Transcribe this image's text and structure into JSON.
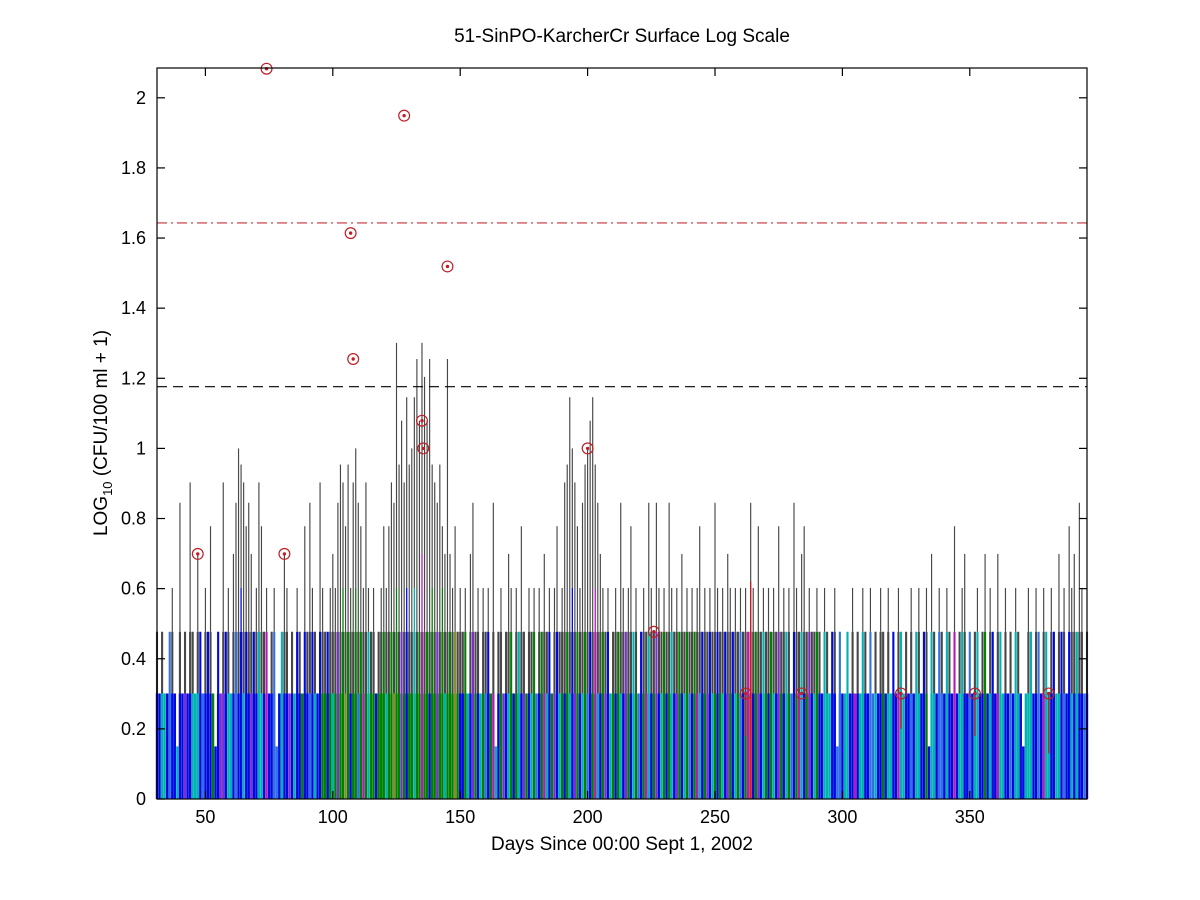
{
  "chart_data": {
    "type": "stem",
    "title": "51-SinPO-KarcherCr Surface Log Scale",
    "xlabel": "Days Since 00:00 Sept 1, 2002",
    "ylabel_pre": "LOG",
    "ylabel_sub": "10",
    "ylabel_post": " (CFU/100 ml + 1)",
    "xlim": [
      31,
      396
    ],
    "ylim": [
      0,
      2.085
    ],
    "xticks": [
      50,
      100,
      150,
      200,
      250,
      300,
      350
    ],
    "xtick_labels": [
      "50",
      "100",
      "150",
      "200",
      "250",
      "300",
      "350"
    ],
    "yticks": [
      0,
      0.2,
      0.4,
      0.6,
      0.8,
      1.0,
      1.2,
      1.4,
      1.6,
      1.8,
      2.0
    ],
    "ytick_labels": [
      "0",
      "0.2",
      "0.4",
      "0.6",
      "0.8",
      "1",
      "1.2",
      "1.4",
      "1.6",
      "1.8",
      "2"
    ],
    "grid": false,
    "legend": "none",
    "reference_lines": [
      {
        "name": "single-sample-criterion",
        "value": 1.643,
        "color": "#c03038",
        "style": "dashdot"
      },
      {
        "name": "geometric-mean-criterion",
        "value": 1.176,
        "color": "#000000",
        "style": "dash"
      }
    ],
    "markers": {
      "shape": "circle-with-dot",
      "color": "#c01e24",
      "points": [
        [
          74,
          2.083
        ],
        [
          128,
          1.949
        ],
        [
          107,
          1.614
        ],
        [
          145,
          1.519
        ],
        [
          108,
          1.255
        ],
        [
          135,
          1.079
        ],
        [
          135.5,
          1.0
        ],
        [
          200,
          1.0
        ],
        [
          47,
          0.699
        ],
        [
          81,
          0.699
        ],
        [
          226,
          0.477
        ],
        [
          262,
          0.301
        ],
        [
          284,
          0.301
        ],
        [
          323,
          0.301
        ],
        [
          352,
          0.301
        ],
        [
          381,
          0.301
        ]
      ]
    },
    "red_stems": [
      {
        "day": 264,
        "from": 0.301,
        "to": 0.62
      },
      {
        "day": 262,
        "from": 0.18,
        "to": 0.301
      },
      {
        "day": 323,
        "from": 0.2,
        "to": 0.301
      },
      {
        "day": 352,
        "from": 0.18,
        "to": 0.301
      },
      {
        "day": 381,
        "from": 0.13,
        "to": 0.301
      }
    ],
    "stem_gray": "#474747",
    "palette": [
      "#0008e0",
      "#2f6fe8",
      "#00b2b2",
      "#007f00",
      "#7a30d0",
      "#b818b8",
      "#8a8a30",
      "#5868a8",
      "#cc2222"
    ],
    "levels": [
      0,
      0.15,
      0.301,
      0.477,
      0.602,
      0.699,
      0.778,
      0.845,
      0.903,
      0.954,
      1.0,
      1.041,
      1.079,
      1.146,
      1.204,
      1.255,
      1.301
    ],
    "ext_levels": [
      0.301,
      0.477,
      0.602,
      0.699
    ],
    "day_start": 31,
    "h": [
      3,
      2,
      3,
      2,
      2,
      3,
      4,
      2,
      1,
      7,
      2,
      3,
      2,
      8,
      3,
      2,
      5,
      3,
      2,
      4,
      3,
      6,
      2,
      1,
      3,
      2,
      8,
      3,
      4,
      2,
      5,
      7,
      10,
      9,
      8,
      6,
      7,
      5,
      3,
      4,
      8,
      6,
      3,
      4,
      2,
      3,
      4,
      1,
      2,
      3,
      5,
      4,
      2,
      3,
      2,
      4,
      3,
      2,
      6,
      3,
      7,
      4,
      3,
      2,
      8,
      4,
      3,
      3,
      4,
      5,
      4,
      7,
      9,
      8,
      6,
      9,
      4,
      8,
      10,
      7,
      6,
      4,
      8,
      4,
      3,
      4,
      2,
      3,
      4,
      6,
      4,
      6,
      8,
      7,
      16,
      9,
      12,
      8,
      13,
      9,
      10,
      13,
      15,
      12,
      16,
      14,
      12,
      15,
      9,
      8,
      7,
      9,
      6,
      5,
      15,
      5,
      4,
      6,
      3,
      4,
      3,
      4,
      2,
      5,
      7,
      3,
      4,
      2,
      4,
      3,
      4,
      2,
      7,
      1,
      3,
      4,
      2,
      3,
      5,
      4,
      2,
      4,
      3,
      6,
      3,
      2,
      4,
      3,
      4,
      2,
      4,
      3,
      5,
      3,
      4,
      2,
      4,
      6,
      3,
      4,
      8,
      9,
      13,
      10,
      8,
      6,
      4,
      7,
      9,
      10,
      12,
      13,
      9,
      7,
      5,
      4,
      3,
      4,
      2,
      3,
      4,
      3,
      7,
      4,
      3,
      4,
      6,
      3,
      4,
      2,
      3,
      4,
      3,
      7,
      4,
      3,
      7,
      4,
      3,
      4,
      3,
      7,
      4,
      3,
      4,
      3,
      5,
      3,
      4,
      3,
      4,
      3,
      4,
      6,
      3,
      4,
      3,
      4,
      3,
      7,
      4,
      3,
      4,
      3,
      5,
      4,
      3,
      4,
      3,
      4,
      3,
      4,
      3,
      7,
      4,
      3,
      6,
      3,
      4,
      3,
      4,
      3,
      4,
      3,
      6,
      3,
      4,
      3,
      4,
      2,
      7,
      4,
      3,
      5,
      6,
      3,
      4,
      3,
      3,
      4,
      3,
      2,
      4,
      3,
      2,
      3,
      4,
      1,
      3,
      2,
      2,
      3,
      2,
      4,
      2,
      3,
      2,
      4,
      3,
      2,
      4,
      2,
      3,
      2,
      4,
      3,
      2,
      4,
      2,
      3,
      2,
      4,
      3,
      2,
      3,
      2,
      4,
      2,
      3,
      4,
      2,
      3,
      4,
      1,
      5,
      3,
      2,
      4,
      3,
      2,
      4,
      3,
      2,
      6,
      2,
      3,
      4,
      5,
      2,
      3,
      2,
      3,
      4,
      2,
      3,
      5,
      2,
      4,
      3,
      2,
      5,
      3,
      2,
      4,
      2,
      3,
      2,
      4,
      3,
      2,
      1,
      2,
      4,
      3,
      2,
      4,
      3,
      2,
      4,
      3,
      2,
      4,
      3,
      2,
      5,
      3,
      4,
      2,
      6,
      4,
      5,
      3,
      7,
      4,
      2,
      3
    ],
    "c": [
      0,
      0,
      2,
      2,
      0,
      1,
      0,
      0,
      2,
      0,
      0,
      4,
      0,
      0,
      2,
      2,
      2,
      0,
      1,
      0,
      0,
      0,
      3,
      0,
      0,
      4,
      4,
      0,
      2,
      2,
      0,
      1,
      0,
      0,
      2,
      0,
      0,
      4,
      0,
      0,
      2,
      2,
      0,
      5,
      0,
      0,
      1,
      1,
      0,
      2,
      0,
      0,
      4,
      0,
      2,
      0,
      0,
      3,
      0,
      0,
      1,
      0,
      2,
      0,
      0,
      3,
      3,
      0,
      3,
      2,
      3,
      4,
      3,
      3,
      6,
      3,
      0,
      3,
      3,
      1,
      3,
      5,
      3,
      2,
      3,
      3,
      0,
      3,
      3,
      3,
      2,
      3,
      3,
      6,
      3,
      3,
      4,
      3,
      0,
      3,
      3,
      2,
      3,
      3,
      5,
      3,
      3,
      0,
      3,
      3,
      4,
      3,
      3,
      2,
      3,
      3,
      3,
      6,
      3,
      0,
      0,
      3,
      2,
      0,
      4,
      3,
      0,
      2,
      3,
      1,
      0,
      3,
      5,
      2,
      0,
      3,
      4,
      0,
      2,
      3,
      0,
      3,
      2,
      0,
      4,
      3,
      0,
      2,
      3,
      1,
      0,
      3,
      5,
      2,
      0,
      3,
      4,
      0,
      2,
      3,
      0,
      3,
      2,
      0,
      4,
      3,
      0,
      2,
      3,
      1,
      0,
      3,
      5,
      2,
      0,
      3,
      4,
      0,
      2,
      3,
      0,
      3,
      2,
      0,
      4,
      3,
      0,
      2,
      3,
      1,
      0,
      3,
      5,
      2,
      0,
      3,
      4,
      0,
      2,
      3,
      0,
      3,
      2,
      0,
      4,
      3,
      0,
      2,
      3,
      1,
      0,
      3,
      5,
      2,
      0,
      3,
      4,
      0,
      2,
      3,
      0,
      3,
      2,
      0,
      4,
      3,
      0,
      2,
      3,
      1,
      0,
      3,
      5,
      8,
      0,
      3,
      4,
      0,
      2,
      3,
      0,
      3,
      2,
      0,
      4,
      3,
      0,
      2,
      3,
      1,
      0,
      3,
      5,
      2,
      0,
      3,
      4,
      0,
      2,
      3,
      0,
      0,
      2,
      2,
      2,
      0,
      0,
      1,
      1,
      0,
      2,
      2,
      0,
      0,
      5,
      0,
      2,
      2,
      0,
      0,
      1,
      1,
      2,
      0,
      0,
      3,
      0,
      2,
      2,
      0,
      0,
      5,
      2,
      2,
      0,
      0,
      1,
      0,
      2,
      2,
      0,
      0,
      3,
      0,
      2,
      2,
      0,
      1,
      1,
      0,
      2,
      0,
      0,
      5,
      0,
      2,
      2,
      0,
      0,
      1,
      0,
      2,
      2,
      0,
      0,
      3,
      0,
      2,
      0,
      0,
      5,
      2,
      2,
      0,
      0,
      1,
      0,
      2,
      2,
      0,
      0,
      2,
      2,
      2,
      0,
      0,
      1,
      0,
      5,
      2,
      2,
      0,
      0,
      2,
      2,
      0,
      1,
      0,
      0,
      2,
      0,
      2,
      0,
      0,
      1,
      0
    ],
    "e": [
      0,
      1,
      0,
      0,
      0,
      1,
      0,
      0,
      1,
      0,
      0,
      0,
      1,
      0,
      0,
      1,
      0,
      1,
      0,
      0,
      1,
      0,
      0,
      0,
      1,
      0,
      0,
      1,
      0,
      0,
      0,
      1,
      0,
      2,
      0,
      1,
      0,
      0,
      1,
      0,
      1,
      0,
      0,
      1,
      0,
      0,
      1,
      0,
      0,
      1,
      0,
      0,
      1,
      0,
      0,
      1,
      0,
      0,
      1,
      0,
      0,
      1,
      0,
      0,
      1,
      0,
      0,
      1,
      0,
      0,
      0,
      1,
      0,
      2,
      0,
      1,
      0,
      0,
      2,
      0,
      1,
      0,
      0,
      1,
      0,
      0,
      1,
      0,
      0,
      1,
      0,
      0,
      1,
      0,
      2,
      0,
      1,
      0,
      2,
      0,
      0,
      2,
      0,
      1,
      3,
      0,
      1,
      0,
      2,
      0,
      1,
      0,
      2,
      0,
      0,
      1,
      0,
      1,
      0,
      0,
      0,
      1,
      0,
      0,
      1,
      0,
      0,
      1,
      0,
      0,
      1,
      0,
      0,
      1,
      0,
      0,
      1,
      0,
      0,
      1,
      0,
      0,
      1,
      0,
      0,
      1,
      0,
      0,
      1,
      0,
      0,
      1,
      0,
      0,
      1,
      0,
      0,
      1,
      0,
      0,
      0,
      1,
      0,
      2,
      0,
      1,
      0,
      0,
      1,
      0,
      1,
      0,
      2,
      0,
      0,
      1,
      0,
      1,
      0,
      0,
      0,
      1,
      0,
      0,
      1,
      0,
      0,
      1,
      0,
      0,
      1,
      0,
      0,
      1,
      0,
      0,
      1,
      0,
      0,
      1,
      0,
      0,
      1,
      0,
      0,
      1,
      0,
      0,
      1,
      0,
      0,
      1,
      0,
      0,
      1,
      0,
      0,
      1,
      0,
      0,
      1,
      0,
      0,
      1,
      0,
      0,
      1,
      0,
      0,
      1,
      0,
      0,
      1,
      2,
      0,
      1,
      0,
      0,
      1,
      0,
      0,
      1,
      0,
      0,
      1,
      0,
      0,
      1,
      0,
      0,
      1,
      0,
      0,
      1,
      0,
      0,
      1,
      0,
      0,
      1,
      0,
      0,
      1,
      0,
      0,
      1,
      0,
      0,
      1,
      0,
      0,
      1,
      0,
      0,
      1,
      0,
      0,
      1,
      0,
      0,
      1,
      0,
      0,
      1,
      0,
      0,
      1,
      0,
      0,
      1,
      0,
      0,
      1,
      0,
      0,
      1,
      0,
      0,
      1,
      0,
      0,
      1,
      0,
      0,
      1,
      0,
      0,
      1,
      0,
      0,
      1,
      0,
      0,
      1,
      0,
      0,
      1,
      0,
      0,
      1,
      0,
      0,
      1,
      0,
      0,
      1,
      0,
      0,
      1,
      0,
      0,
      1,
      0,
      0,
      1,
      0,
      0,
      1,
      0,
      0,
      1,
      0,
      0,
      1,
      0,
      0,
      1,
      0,
      0,
      1,
      0,
      0,
      1,
      0,
      0,
      1,
      0,
      0,
      1,
      0,
      0,
      1,
      0,
      0,
      1,
      0
    ]
  }
}
